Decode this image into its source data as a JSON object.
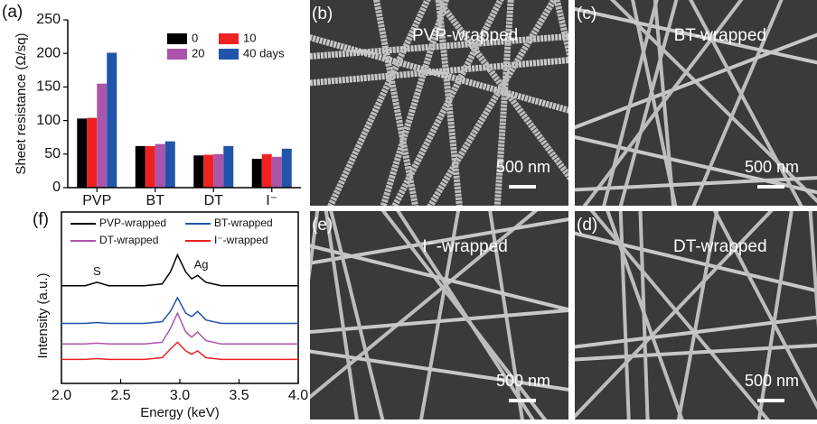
{
  "chart_data": [
    {
      "type": "bar",
      "panel": "(a)",
      "ylabel": "Sheet resistance (Ω/sq)",
      "categories": [
        "PVP",
        "BT",
        "DT",
        "I⁻"
      ],
      "series": [
        {
          "name": "0",
          "color": "#000000",
          "values": [
            103,
            62,
            48,
            43
          ]
        },
        {
          "name": "10",
          "color": "#ee2222",
          "values": [
            104,
            62,
            49,
            50
          ]
        },
        {
          "name": "20",
          "color": "#aa55aa",
          "values": [
            155,
            65,
            50,
            46
          ]
        },
        {
          "name": "40 days",
          "color": "#2255aa",
          "values": [
            201,
            69,
            62,
            58
          ]
        }
      ],
      "ylim": [
        0,
        250
      ],
      "yticks": [
        0,
        50,
        100,
        150,
        200,
        250
      ]
    },
    {
      "type": "line",
      "panel": "(f)",
      "xlabel": "Energy (keV)",
      "ylabel": "Intensity (a.u.)",
      "x": [
        2.0,
        2.2,
        2.3,
        2.4,
        2.7,
        2.85,
        2.92,
        2.98,
        3.05,
        3.1,
        3.15,
        3.22,
        3.35,
        3.6,
        4.0
      ],
      "series": [
        {
          "name": "PVP-wrapped",
          "color": "#000000",
          "values": [
            5.7,
            5.7,
            5.9,
            5.7,
            5.7,
            5.8,
            6.5,
            7.5,
            6.5,
            6.1,
            6.3,
            5.9,
            5.7,
            5.7,
            5.7
          ]
        },
        {
          "name": "BT-wrapped",
          "color": "#2255aa",
          "values": [
            3.5,
            3.5,
            3.55,
            3.5,
            3.5,
            3.6,
            4.2,
            5.0,
            4.1,
            3.9,
            4.2,
            3.7,
            3.5,
            3.5,
            3.5
          ]
        },
        {
          "name": "DT-wrapped",
          "color": "#aa55aa",
          "values": [
            2.3,
            2.3,
            2.35,
            2.3,
            2.3,
            2.4,
            3.2,
            4.1,
            3.0,
            2.7,
            3.0,
            2.5,
            2.3,
            2.3,
            2.3
          ]
        },
        {
          "name": "I⁻-wrapped",
          "color": "#ee2222",
          "values": [
            1.4,
            1.4,
            1.45,
            1.4,
            1.4,
            1.5,
            2.0,
            2.4,
            1.9,
            1.7,
            1.9,
            1.5,
            1.4,
            1.4,
            1.4
          ]
        }
      ],
      "annotations": [
        {
          "text": "S",
          "x": 2.3,
          "y": 6.5
        },
        {
          "text": "Ag",
          "x": 3.18,
          "y": 6.9
        }
      ],
      "xlim": [
        2.0,
        4.0
      ],
      "xticks": [
        {
          "value": 2,
          "label": "2.0"
        },
        {
          "value": 2.5,
          "label": "2.5"
        },
        {
          "value": 3,
          "label": "3.0"
        },
        {
          "value": 3.5,
          "label": "3.5"
        },
        {
          "value": 4,
          "label": "4.0"
        }
      ],
      "ylim": [
        0,
        10
      ]
    }
  ],
  "images": [
    {
      "label": "(b)",
      "caption": "PVP-wrapped",
      "scale_bar": "500 nm"
    },
    {
      "label": "(c)",
      "caption": "BT-wrapped",
      "scale_bar": "500 nm"
    },
    {
      "label": "(e)",
      "caption": "I⁻-wrapped",
      "scale_bar": "500 nm"
    },
    {
      "label": "(d)",
      "caption": "DT-wrapped",
      "scale_bar": "500 nm"
    }
  ]
}
